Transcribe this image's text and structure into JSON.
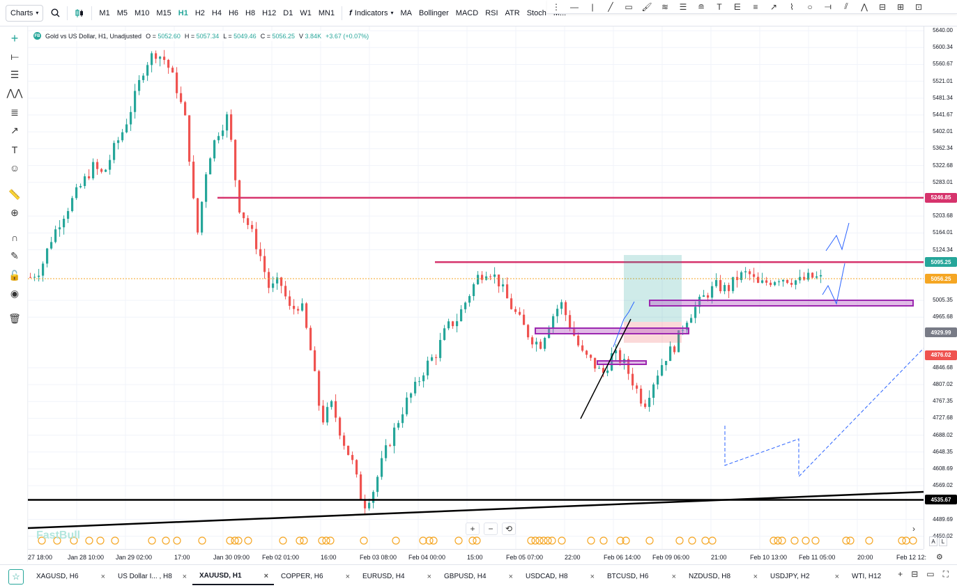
{
  "toolbar": {
    "charts_label": "Charts",
    "timeframes": [
      "M1",
      "M5",
      "M10",
      "M15",
      "H1",
      "H2",
      "H4",
      "H6",
      "H8",
      "H12",
      "D1",
      "W1",
      "MN1"
    ],
    "active_timeframe": "H1",
    "indicators_label": "Indicators",
    "indicators": [
      "MA",
      "Bollinger",
      "MACD",
      "RSI",
      "ATR",
      "Stoch",
      "M..."
    ]
  },
  "legend": {
    "symbol_badge": "FB",
    "title": "Gold vs US Dollar, H1, Unadjusted",
    "o_label": "O",
    "o": "5052.60",
    "h_label": "H",
    "h": "5057.34",
    "l_label": "L",
    "l": "5049.46",
    "c_label": "C",
    "c": "5056.25",
    "v_label": "V",
    "v": "3.84K",
    "change": "+3.67 (+0.07%)"
  },
  "watermark": "FastBull",
  "price_axis": {
    "labels": [
      "5640.00",
      "5600.34",
      "5560.67",
      "5521.01",
      "5481.34",
      "5441.67",
      "5402.01",
      "5362.34",
      "5322.68",
      "5283.01",
      "5203.68",
      "5164.01",
      "5124.34",
      "5005.35",
      "4965.68",
      "4846.68",
      "4807.02",
      "4767.35",
      "4727.68",
      "4688.02",
      "4648.35",
      "4608.69",
      "4569.02",
      "4489.69",
      "4450.02"
    ],
    "tags": [
      {
        "value": "5246.85",
        "color": "#d6336c"
      },
      {
        "value": "5095.25",
        "color": "#26a69a"
      },
      {
        "value": "5056.25",
        "color": "#f5a623"
      },
      {
        "value": "4929.99",
        "color": "#787b86"
      },
      {
        "value": "4876.02",
        "color": "#ef5350"
      },
      {
        "value": "4535.67",
        "color": "#000000"
      }
    ]
  },
  "time_axis": [
    "27 18:00",
    "Jan 28 10:00",
    "Jan 29 02:00",
    "17:00",
    "Jan 30 09:00",
    "Feb 02 01:00",
    "16:00",
    "Feb 03 08:00",
    "Feb 04 00:00",
    "15:00",
    "Feb 05 07:00",
    "22:00",
    "Feb 06 14:00",
    "Feb 09 06:00",
    "21:00",
    "Feb 10 13:00",
    "Feb 11 05:00",
    "20:00",
    "Feb 12 12:"
  ],
  "chart_data": {
    "type": "candlestick",
    "symbol": "XAUUSD",
    "timeframe": "H1",
    "ylim": [
      4420,
      5650
    ],
    "x_ticks": [
      "27 18:00",
      "Jan 28 10:00",
      "Jan 29 02:00",
      "17:00",
      "Jan 30 09:00",
      "Feb 02 01:00",
      "16:00",
      "Feb 03 08:00",
      "Feb 04 00:00",
      "15:00",
      "Feb 05 07:00",
      "22:00",
      "Feb 06 14:00",
      "Feb 09 06:00",
      "21:00",
      "Feb 10 13:00",
      "Feb 11 05:00",
      "20:00",
      "Feb 12 12:"
    ],
    "path": [
      5060,
      5080,
      5150,
      5200,
      5240,
      5280,
      5320,
      5300,
      5360,
      5410,
      5480,
      5560,
      5590,
      5570,
      5510,
      5420,
      5150,
      5330,
      5400,
      5440,
      5230,
      5180,
      5120,
      5030,
      5050,
      4980,
      5000,
      4880,
      4720,
      4760,
      4680,
      4620,
      4520,
      4560,
      4640,
      4700,
      4760,
      4800,
      4850,
      4880,
      4940,
      4960,
      5010,
      5060,
      5080,
      5050,
      5000,
      4960,
      4920,
      4900,
      4960,
      5000,
      4940,
      4880,
      4860,
      4830,
      4880,
      4860,
      4810,
      4760,
      4820,
      4870,
      4900,
      4960,
      4990,
      5020,
      5040,
      5030,
      5060,
      5070,
      5040,
      5050,
      5060,
      5055,
      5050,
      5060,
      5056
    ],
    "horizontal_levels": [
      5246.85,
      5095.25,
      4535.67
    ],
    "current_price": 5056.25
  },
  "tabs": [
    {
      "label": "XAGUSD, H6",
      "active": false
    },
    {
      "label": "US Dollar I... , H8",
      "active": false
    },
    {
      "label": "XAUUSD, H1",
      "active": true
    },
    {
      "label": "COPPER, H6",
      "active": false
    },
    {
      "label": "EURUSD, H4",
      "active": false
    },
    {
      "label": "GBPUSD, H4",
      "active": false
    },
    {
      "label": "USDCAD, H8",
      "active": false
    },
    {
      "label": "BTCUSD, H6",
      "active": false
    },
    {
      "label": "NZDUSD, H8",
      "active": false
    },
    {
      "label": "USDJPY, H2",
      "active": false
    },
    {
      "label": "WTI, H12",
      "active": false
    }
  ],
  "icons": {
    "search": "search-icon",
    "candle": "candle-type-icon",
    "fx": "fx-icon",
    "crosshair": "crosshair-icon",
    "trash": "trash-icon",
    "eye": "eye-icon",
    "lock": "lock-icon",
    "magnet": "magnet-icon",
    "star": "star-icon"
  },
  "colors": {
    "up": "#26a69a",
    "down": "#ef5350",
    "accent": "#26a69a"
  }
}
